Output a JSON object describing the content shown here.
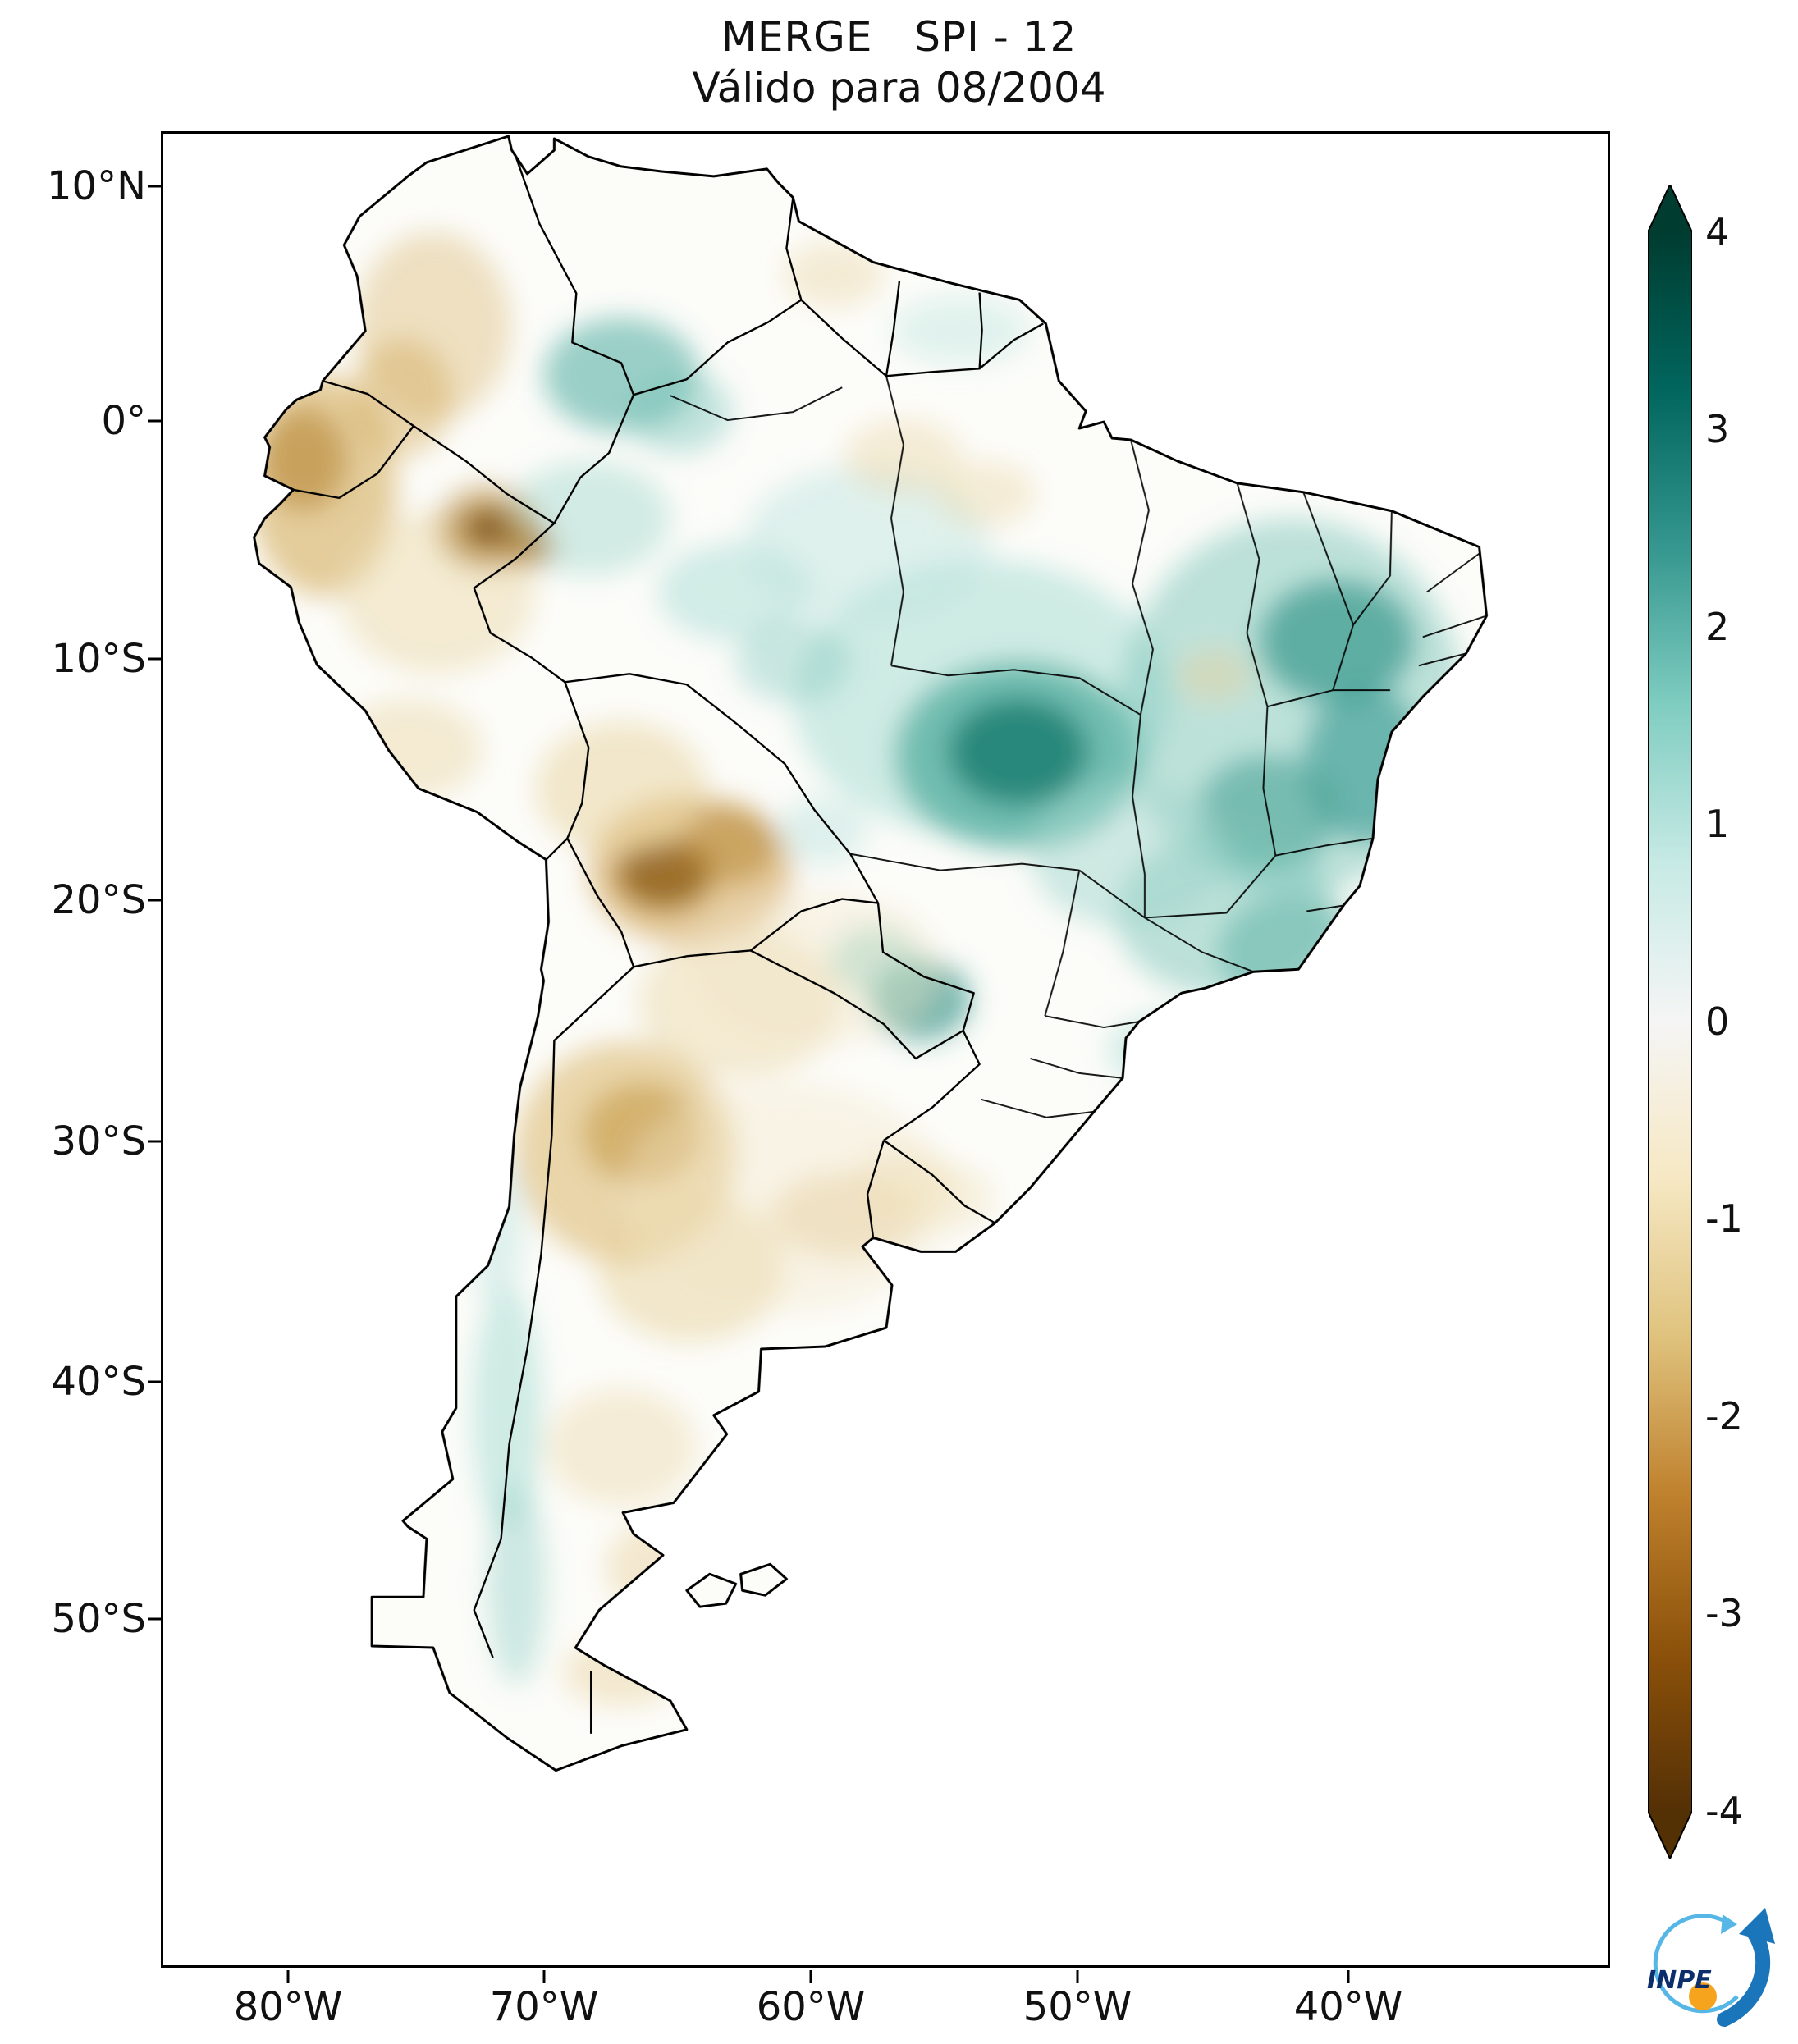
{
  "title": "MERGE   SPI - 12",
  "subtitle": "Válido para 08/2004",
  "axes": {
    "y_ticks": [
      "10°N",
      "0°",
      "10°S",
      "20°S",
      "30°S",
      "40°S",
      "50°S"
    ],
    "x_ticks": [
      "80°W",
      "70°W",
      "60°W",
      "50°W",
      "40°W"
    ]
  },
  "colorbar": {
    "ticks": [
      "4",
      "3",
      "2",
      "1",
      "0",
      "-1",
      "-2",
      "-3",
      "-4"
    ],
    "min": -4,
    "max": 4,
    "colors": [
      "#003c30",
      "#01665e",
      "#35978f",
      "#80cdc1",
      "#c7eae5",
      "#f5f5f5",
      "#f6e8c3",
      "#dfc27d",
      "#bf812d",
      "#8c510a",
      "#543005"
    ]
  },
  "logo": {
    "label": "INPE"
  },
  "chart_data": {
    "type": "heatmap",
    "title": "MERGE   SPI - 12",
    "subtitle": "Válido para 08/2004",
    "region": "South America",
    "lat_ticks": [
      "10°N",
      "0°",
      "10°S",
      "20°S",
      "30°S",
      "40°S",
      "50°S"
    ],
    "lon_ticks": [
      "80°W",
      "70°W",
      "60°W",
      "50°W",
      "40°W"
    ],
    "value_range": [
      -4,
      4
    ],
    "colorbar_ticks": [
      4,
      3,
      2,
      1,
      0,
      -1,
      -2,
      -3,
      -4
    ],
    "colormap": "diverging brown (dry, negative) to teal (wet, positive)",
    "notable_anomalies": [
      {
        "region": "central Brazil (~12°S, 52°W)",
        "sign": "wet",
        "approx_spi": 2
      },
      {
        "region": "northeast Brazil interior",
        "sign": "wet",
        "approx_spi": 1.5
      },
      {
        "region": "eastern Brazil (Minas Gerais area)",
        "sign": "wet",
        "approx_spi": 1
      },
      {
        "region": "southeast Colombia / Venezuela border (~2°N, 70°W)",
        "sign": "wet",
        "approx_spi": 1.5
      },
      {
        "region": "Ecuador and northern Peru coast",
        "sign": "dry",
        "approx_spi": -1.5
      },
      {
        "region": "southwest Amazon spot (~7°S, 72°W)",
        "sign": "dry",
        "approx_spi": -2.5
      },
      {
        "region": "southeast Bolivia / Paraguay border (~18°S, 62°W)",
        "sign": "dry",
        "approx_spi": -3
      },
      {
        "region": "northern Argentina (~28°S, 64°W)",
        "sign": "dry",
        "approx_spi": -1.5
      },
      {
        "region": "southern Brazil / Uruguay border",
        "sign": "dry",
        "approx_spi": -1
      },
      {
        "region": "Andes of central-south Argentina/Chile",
        "sign": "wet",
        "approx_spi": 1
      }
    ]
  }
}
